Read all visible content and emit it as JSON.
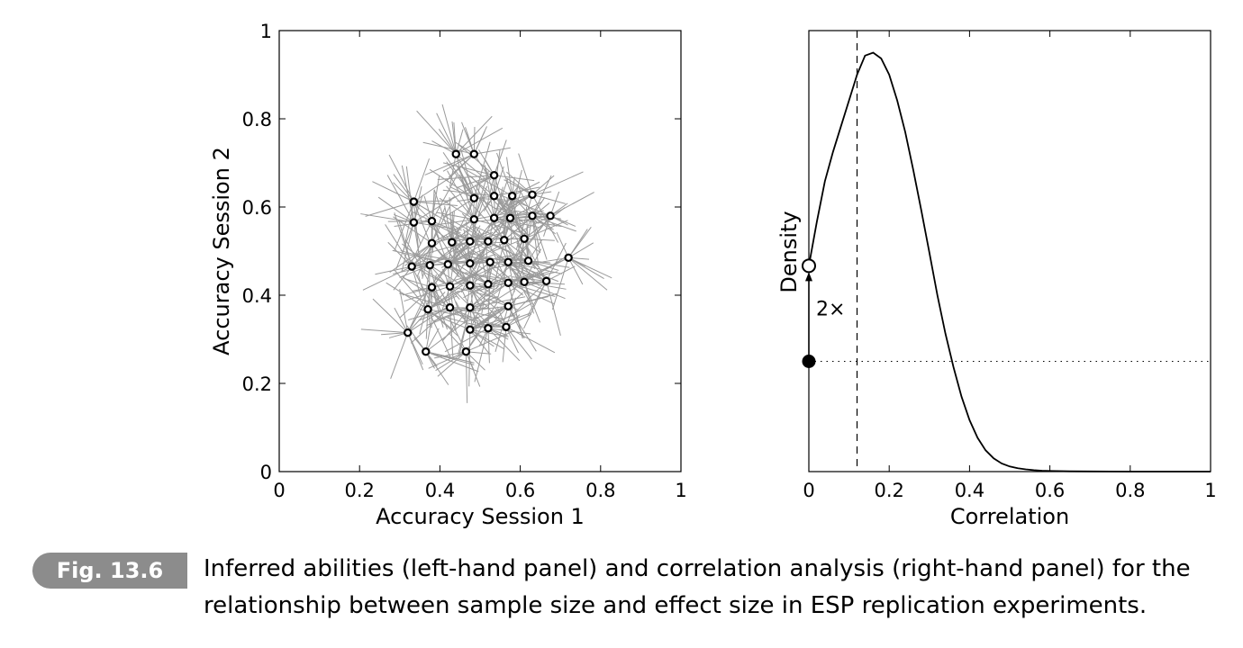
{
  "caption": {
    "label": "Fig. 13.6",
    "text": "Inferred abilities (left-hand panel) and correlation analysis (right-hand panel) for the relationship between sample size and effect size in ESP replication experiments."
  },
  "chart_data": [
    {
      "type": "scatter",
      "xlabel": "Accuracy Session 1",
      "ylabel": "Accuracy Session 2",
      "xlim": [
        0,
        1
      ],
      "ylim": [
        0,
        1
      ],
      "xticks": [
        "0",
        "0.2",
        "0.4",
        "0.6",
        "0.8",
        "1"
      ],
      "yticks": [
        "0",
        "0.2",
        "0.4",
        "0.6",
        "0.8",
        "1"
      ],
      "grid": false,
      "colors": {
        "points": "#000000",
        "samples": "#9a9a9a"
      },
      "points": [
        [
          0.44,
          0.72
        ],
        [
          0.485,
          0.72
        ],
        [
          0.535,
          0.672
        ],
        [
          0.335,
          0.612
        ],
        [
          0.485,
          0.62
        ],
        [
          0.535,
          0.625
        ],
        [
          0.58,
          0.625
        ],
        [
          0.63,
          0.628
        ],
        [
          0.335,
          0.565
        ],
        [
          0.38,
          0.568
        ],
        [
          0.485,
          0.572
        ],
        [
          0.535,
          0.575
        ],
        [
          0.575,
          0.575
        ],
        [
          0.63,
          0.58
        ],
        [
          0.675,
          0.58
        ],
        [
          0.38,
          0.518
        ],
        [
          0.43,
          0.52
        ],
        [
          0.475,
          0.522
        ],
        [
          0.52,
          0.522
        ],
        [
          0.56,
          0.525
        ],
        [
          0.61,
          0.528
        ],
        [
          0.33,
          0.465
        ],
        [
          0.375,
          0.468
        ],
        [
          0.42,
          0.47
        ],
        [
          0.475,
          0.472
        ],
        [
          0.525,
          0.475
        ],
        [
          0.57,
          0.475
        ],
        [
          0.62,
          0.478
        ],
        [
          0.72,
          0.485
        ],
        [
          0.38,
          0.418
        ],
        [
          0.425,
          0.42
        ],
        [
          0.475,
          0.422
        ],
        [
          0.52,
          0.425
        ],
        [
          0.57,
          0.428
        ],
        [
          0.61,
          0.43
        ],
        [
          0.665,
          0.432
        ],
        [
          0.37,
          0.368
        ],
        [
          0.425,
          0.372
        ],
        [
          0.475,
          0.372
        ],
        [
          0.57,
          0.375
        ],
        [
          0.475,
          0.322
        ],
        [
          0.52,
          0.325
        ],
        [
          0.565,
          0.328
        ],
        [
          0.32,
          0.315
        ],
        [
          0.365,
          0.272
        ],
        [
          0.465,
          0.272
        ]
      ]
    },
    {
      "type": "line",
      "xlabel": "Correlation",
      "ylabel": "Density",
      "xlim": [
        0,
        1
      ],
      "xticks": [
        "0",
        "0.2",
        "0.4",
        "0.6",
        "0.8",
        "1"
      ],
      "y_ticks_shown": false,
      "grid": false,
      "ylim": [
        0,
        6.0
      ],
      "x": [
        0,
        0.02,
        0.04,
        0.06,
        0.08,
        0.1,
        0.12,
        0.14,
        0.16,
        0.18,
        0.2,
        0.22,
        0.24,
        0.26,
        0.28,
        0.3,
        0.32,
        0.34,
        0.36,
        0.38,
        0.4,
        0.42,
        0.44,
        0.46,
        0.48,
        0.5,
        0.52,
        0.54,
        0.56,
        0.58,
        0.6,
        0.65,
        0.7,
        0.8,
        0.9,
        1.0
      ],
      "y": [
        2.8,
        3.4,
        3.95,
        4.35,
        4.7,
        5.05,
        5.4,
        5.66,
        5.7,
        5.62,
        5.4,
        5.05,
        4.62,
        4.1,
        3.55,
        2.98,
        2.4,
        1.88,
        1.42,
        1.02,
        0.7,
        0.46,
        0.29,
        0.18,
        0.11,
        0.07,
        0.045,
        0.03,
        0.02,
        0.012,
        0.008,
        0.004,
        0.002,
        0.0,
        0.0,
        0.0
      ],
      "vline_x": 0.12,
      "prior_density_at_zero": 1.5,
      "posterior_density_at_zero": 2.8,
      "annotation": "2×"
    }
  ]
}
